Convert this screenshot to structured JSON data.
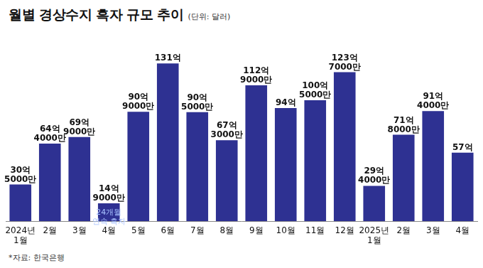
{
  "chart_data": {
    "type": "bar",
    "title": "월별 경상수지 흑자 규모 추이",
    "subtitle": "(단위: 달러)",
    "source": "*자료: 한국은행",
    "categories": [
      "2024년 1월",
      "2월",
      "3월",
      "4월",
      "5월",
      "6월",
      "7월",
      "8월",
      "9월",
      "10월",
      "11월",
      "12월",
      "2025년 1월",
      "2월",
      "3월",
      "4월"
    ],
    "values": [
      3050000000,
      6440000000,
      6990000000,
      1490000000,
      9090000000,
      13100000000,
      9050000000,
      6730000000,
      11290000000,
      9400000000,
      10050000000,
      12370000000,
      2940000000,
      7180000000,
      9140000000,
      5700000000
    ],
    "value_labels": [
      "30억 5000만",
      "64억 4000만",
      "69억 9000만",
      "14억 9000만",
      "90억 9000만",
      "131억",
      "90억 5000만",
      "67억 3000만",
      "112억 9000만",
      "94억",
      "100억 5000만",
      "123억 7000만",
      "29억 4000만",
      "71억 8000만",
      "91억 4000만",
      "57억"
    ],
    "data_labels": true,
    "color": "#2e3192",
    "grid": false,
    "tick_labels": "x",
    "annotations": [
      {
        "category": "4월",
        "text": "24개월 연속 흑자"
      }
    ]
  }
}
